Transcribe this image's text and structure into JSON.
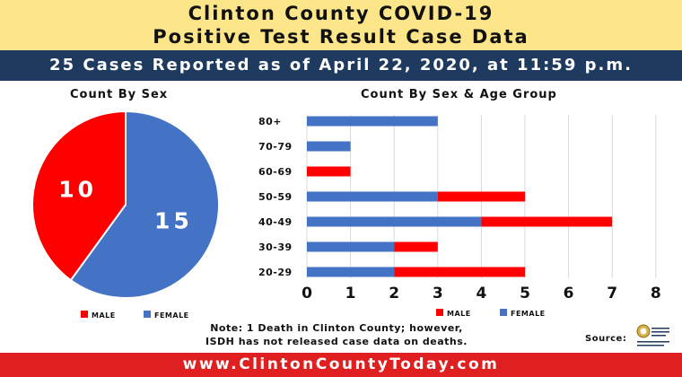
{
  "header": {
    "title_line1": "Clinton County COVID-19",
    "title_line2": "Positive Test Result Case Data",
    "subtitle": "25 Cases Reported as of  April 22, 2020, at 11:59 p.m."
  },
  "colors": {
    "male": "#ff0000",
    "female": "#4472c4",
    "banner": "#fde589",
    "navy": "#1f3a5f",
    "footer": "#e02020"
  },
  "chart_data": [
    {
      "type": "pie",
      "title": "Count By Sex",
      "slices": [
        {
          "name": "FEMALE",
          "value": 15
        },
        {
          "name": "MALE",
          "value": 10
        }
      ],
      "legend": [
        "MALE",
        "FEMALE"
      ],
      "legend_position": "bottom"
    },
    {
      "type": "bar",
      "orientation": "horizontal",
      "stacked": true,
      "title": "Count By Sex & Age Group",
      "categories": [
        "80+",
        "70-79",
        "60-69",
        "50-59",
        "40-49",
        "30-39",
        "20-29"
      ],
      "series": [
        {
          "name": "FEMALE",
          "values": [
            3,
            1,
            0,
            3,
            4,
            2,
            2
          ]
        },
        {
          "name": "MALE",
          "values": [
            0,
            0,
            1,
            2,
            3,
            1,
            3
          ]
        }
      ],
      "xlim": [
        0,
        8
      ],
      "x_ticks": [
        0,
        1,
        2,
        3,
        4,
        5,
        6,
        7,
        8
      ],
      "grid": true,
      "legend": [
        "MALE",
        "FEMALE"
      ],
      "legend_position": "bottom"
    }
  ],
  "note_line1": "Note: 1 Death in Clinton County; however,",
  "note_line2": "ISDH has not released case data on deaths.",
  "source_label": "Source:",
  "source_logo_text": "Indiana State Department of Health",
  "footer": "www.ClintonCountyToday.com"
}
